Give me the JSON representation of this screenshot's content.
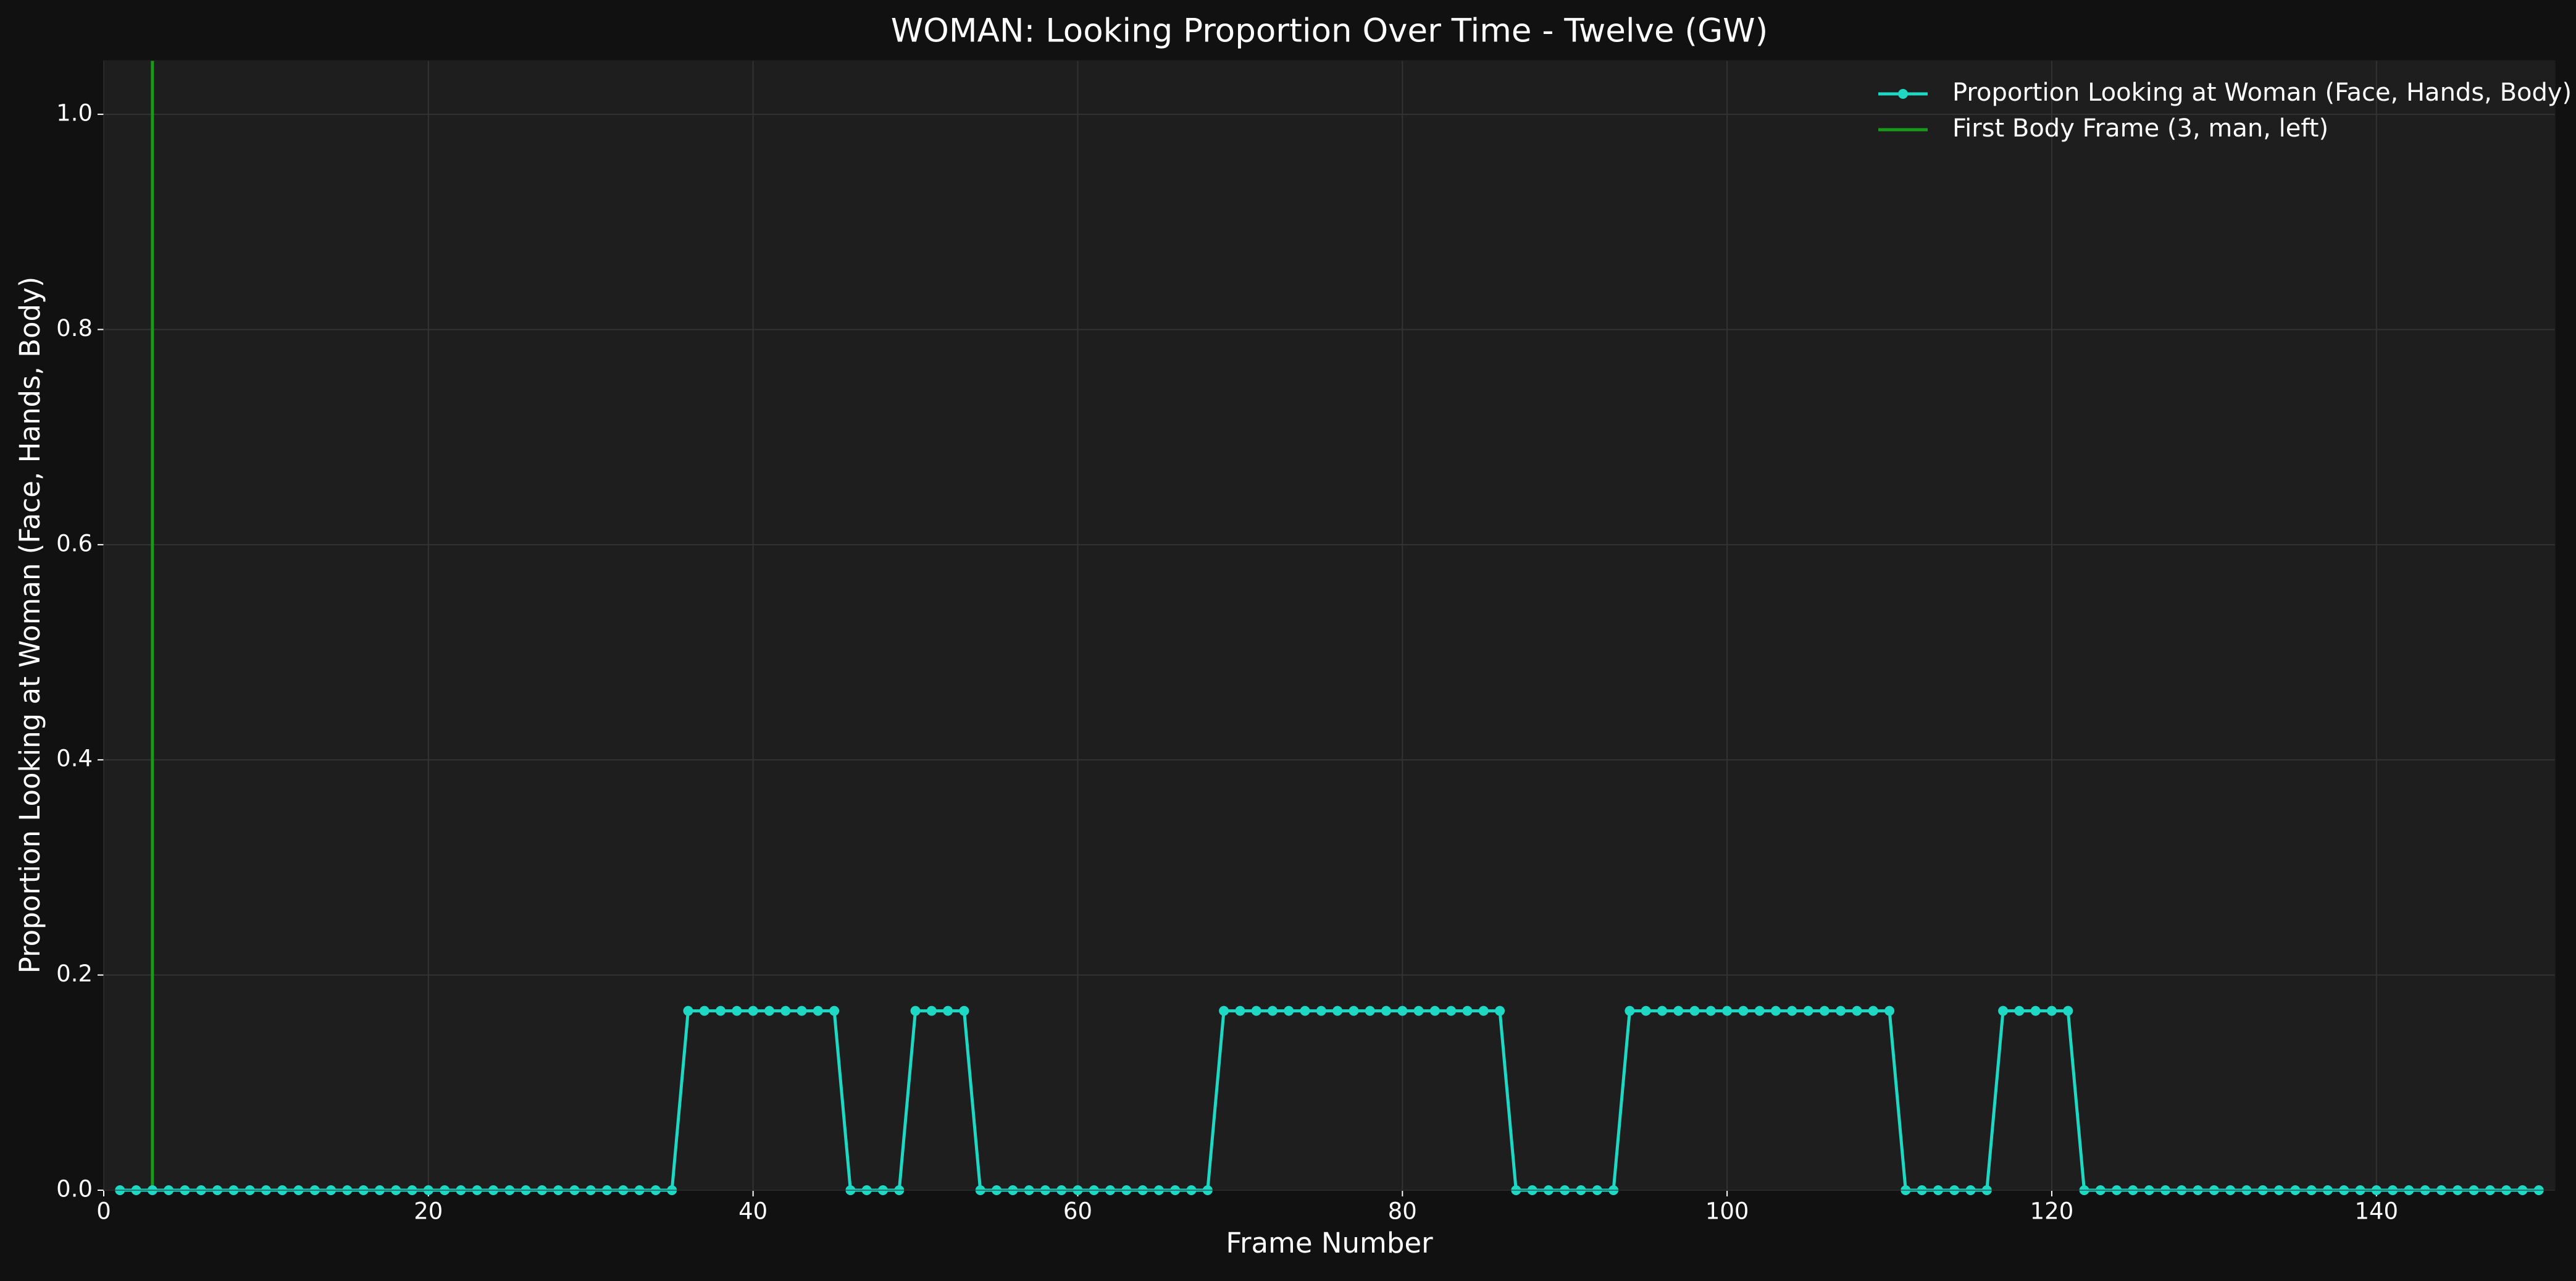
{
  "chart_data": {
    "type": "line",
    "title": "WOMAN: Looking Proportion Over Time - Twelve (GW)",
    "xlabel": "Frame Number",
    "ylabel": "Proportion Looking at Woman (Face, Hands, Body)",
    "x": [
      1,
      2,
      3,
      4,
      5,
      6,
      7,
      8,
      9,
      10,
      11,
      12,
      13,
      14,
      15,
      16,
      17,
      18,
      19,
      20,
      21,
      22,
      23,
      24,
      25,
      26,
      27,
      28,
      29,
      30,
      31,
      32,
      33,
      34,
      35,
      36,
      37,
      38,
      39,
      40,
      41,
      42,
      43,
      44,
      45,
      46,
      47,
      48,
      49,
      50,
      51,
      52,
      53,
      54,
      55,
      56,
      57,
      58,
      59,
      60,
      61,
      62,
      63,
      64,
      65,
      66,
      67,
      68,
      69,
      70,
      71,
      72,
      73,
      74,
      75,
      76,
      77,
      78,
      79,
      80,
      81,
      82,
      83,
      84,
      85,
      86,
      87,
      88,
      89,
      90,
      91,
      92,
      93,
      94,
      95,
      96,
      97,
      98,
      99,
      100,
      101,
      102,
      103,
      104,
      105,
      106,
      107,
      108,
      109,
      110,
      111,
      112,
      113,
      114,
      115,
      116,
      117,
      118,
      119,
      120,
      121,
      122,
      123,
      124,
      125,
      126,
      127,
      128,
      129,
      130,
      131,
      132,
      133,
      134,
      135,
      136,
      137,
      138,
      139,
      140,
      141,
      142,
      143,
      144,
      145,
      146,
      147,
      148,
      149,
      150
    ],
    "series": [
      {
        "name": "Proportion Looking at Woman (Face, Hands, Body)",
        "color": "#1ed8c4",
        "values": [
          0,
          0,
          0,
          0,
          0,
          0,
          0,
          0,
          0,
          0,
          0,
          0,
          0,
          0,
          0,
          0,
          0,
          0,
          0,
          0,
          0,
          0,
          0,
          0,
          0,
          0,
          0,
          0,
          0,
          0,
          0,
          0,
          0,
          0,
          0,
          0.1667,
          0.1667,
          0.1667,
          0.1667,
          0.1667,
          0.1667,
          0.1667,
          0.1667,
          0.1667,
          0.1667,
          0,
          0,
          0,
          0,
          0.1667,
          0.1667,
          0.1667,
          0.1667,
          0,
          0,
          0,
          0,
          0,
          0,
          0,
          0,
          0,
          0,
          0,
          0,
          0,
          0,
          0,
          0.1667,
          0.1667,
          0.1667,
          0.1667,
          0.1667,
          0.1667,
          0.1667,
          0.1667,
          0.1667,
          0.1667,
          0.1667,
          0.1667,
          0.1667,
          0.1667,
          0.1667,
          0.1667,
          0.1667,
          0.1667,
          0,
          0,
          0,
          0,
          0,
          0,
          0,
          0.1667,
          0.1667,
          0.1667,
          0.1667,
          0.1667,
          0.1667,
          0.1667,
          0.1667,
          0.1667,
          0.1667,
          0.1667,
          0.1667,
          0.1667,
          0.1667,
          0.1667,
          0.1667,
          0.1667,
          0,
          0,
          0,
          0,
          0,
          0,
          0.1667,
          0.1667,
          0.1667,
          0.1667,
          0.1667,
          0,
          0,
          0,
          0,
          0,
          0,
          0,
          0,
          0,
          0,
          0,
          0,
          0,
          0,
          0,
          0,
          0,
          0,
          0,
          0,
          0,
          0,
          0,
          0,
          0,
          0,
          0,
          0,
          0
        ]
      }
    ],
    "vlines": [
      {
        "name": "First Body Frame (3, man, left)",
        "x": 3,
        "color": "#1a9a1a"
      }
    ],
    "xlim": [
      0,
      151
    ],
    "xticks": [
      0,
      20,
      40,
      60,
      80,
      100,
      120,
      140
    ],
    "ylim": [
      0,
      1.05
    ],
    "yticks": [
      {
        "value": 0,
        "label": "0.0"
      },
      0.2,
      0.4,
      0.6,
      0.8,
      {
        "value": 1,
        "label": "1.0"
      }
    ],
    "grid": true,
    "legend": "upper right"
  }
}
